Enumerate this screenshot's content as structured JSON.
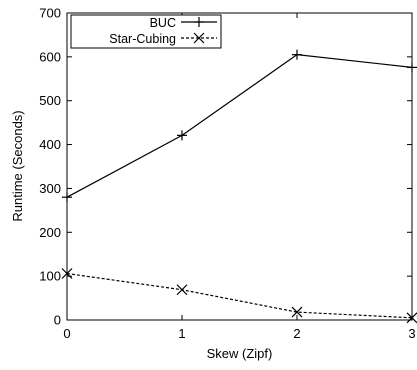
{
  "chart_data": {
    "type": "line",
    "xlabel": "Skew (Zipf)",
    "ylabel": "Runtime (Seconds)",
    "x": [
      0,
      1,
      2,
      3
    ],
    "xlim": [
      0,
      3
    ],
    "ylim": [
      0,
      700
    ],
    "xticks": [
      "0",
      "1",
      "2",
      "3"
    ],
    "yticks": [
      "0",
      "100",
      "200",
      "300",
      "400",
      "500",
      "600",
      "700"
    ],
    "grid": false,
    "legend_position": "top-left",
    "series": [
      {
        "name": "BUC",
        "values": [
          280,
          421,
          605,
          576
        ],
        "marker": "plus",
        "line": "solid",
        "color": "#000000"
      },
      {
        "name": "Star-Cubing",
        "values": [
          106,
          69,
          18,
          5
        ],
        "marker": "x",
        "line": "dashed",
        "color": "#000000"
      }
    ]
  }
}
